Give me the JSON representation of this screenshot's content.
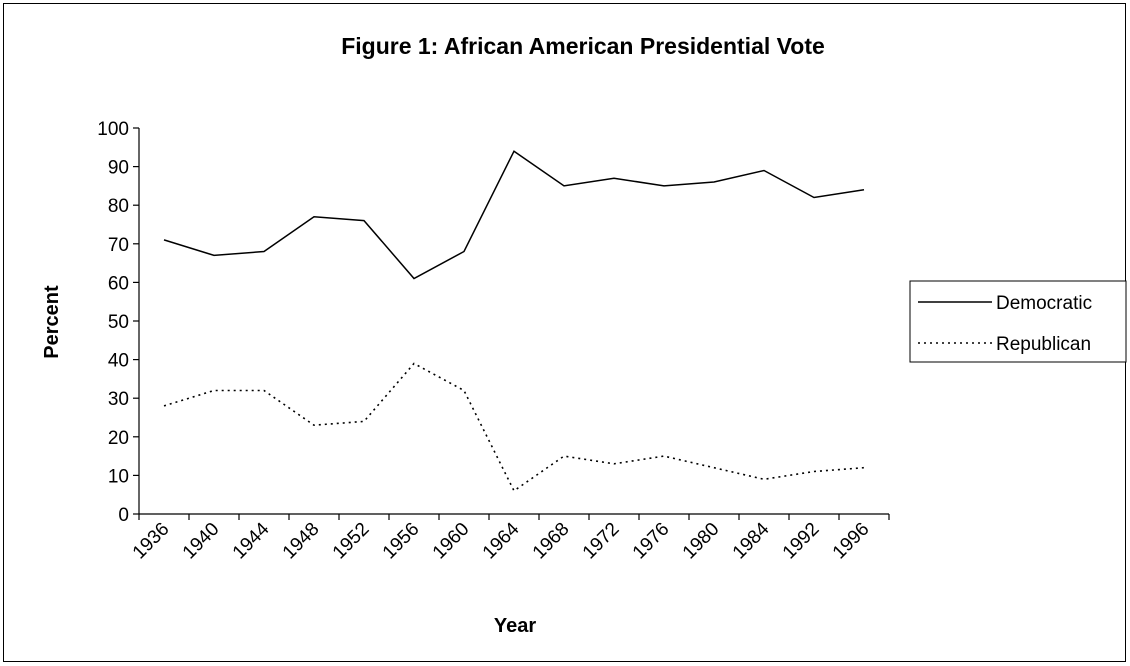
{
  "chart_data": {
    "type": "line",
    "title": "Figure 1: African American Presidential Vote",
    "xlabel": "Year",
    "ylabel": "Percent",
    "ylim": [
      0,
      100
    ],
    "yticks": [
      0,
      10,
      20,
      30,
      40,
      50,
      60,
      70,
      80,
      90,
      100
    ],
    "categories": [
      "1936",
      "1940",
      "1944",
      "1948",
      "1952",
      "1956",
      "1960",
      "1964",
      "1968",
      "1972",
      "1976",
      "1980",
      "1984",
      "1992",
      "1996"
    ],
    "series": [
      {
        "name": "Democratic",
        "line_style": "solid",
        "color": "#000000",
        "values": [
          71,
          67,
          68,
          77,
          76,
          61,
          68,
          94,
          85,
          87,
          85,
          86,
          89,
          82,
          84
        ]
      },
      {
        "name": "Republican",
        "line_style": "dotted",
        "color": "#000000",
        "values": [
          28,
          32,
          32,
          23,
          24,
          39,
          32,
          6,
          15,
          13,
          15,
          12,
          9,
          11,
          12
        ]
      }
    ],
    "grid": false,
    "legend_position": "right"
  }
}
